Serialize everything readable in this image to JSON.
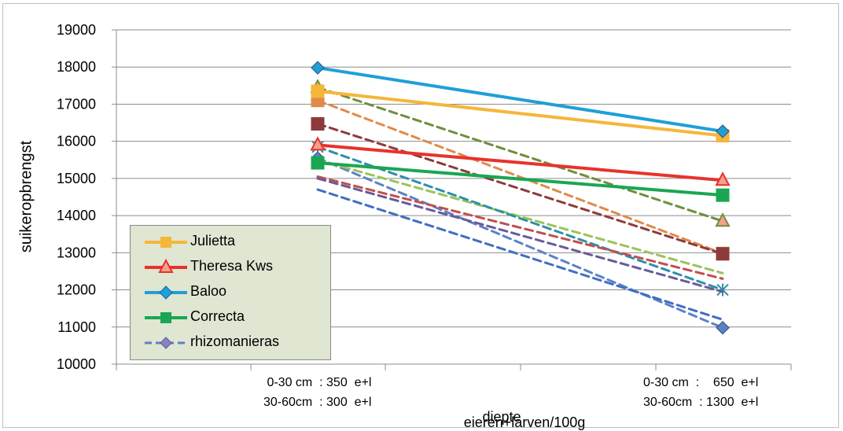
{
  "chart_data": {
    "type": "line",
    "ylabel": "suikeropbrengst",
    "xlabel_line1": "diepte",
    "xlabel_line2": "eieren+larven/100g",
    "ylim": [
      10000,
      19000
    ],
    "yticks": [
      "10000",
      "11000",
      "12000",
      "13000",
      "14000",
      "15000",
      "16000",
      "17000",
      "18000",
      "19000"
    ],
    "categories": [
      {
        "line1": "0-30 cm  : 350  e+l",
        "line2": "30-60cm  : 300  e+l"
      },
      {
        "line1": "0-30 cm  :    650  e+l",
        "line2": "30-60cm  : 1300  e+l"
      }
    ],
    "legend": [
      "Julietta",
      "Theresa Kws",
      "Baloo",
      "Correcta",
      "rhizomanieras"
    ],
    "series": [
      {
        "name": "Julietta",
        "values": [
          17350,
          16150
        ],
        "color": "#f5b63a",
        "dash": false,
        "marker": "square"
      },
      {
        "name": "Theresa Kws",
        "values": [
          15900,
          14950
        ],
        "color": "#e8322c",
        "dash": false,
        "marker": "triangle"
      },
      {
        "name": "Baloo",
        "values": [
          17980,
          16270
        ],
        "color": "#1f9fd8",
        "dash": false,
        "marker": "diamond"
      },
      {
        "name": "Correcta",
        "values": [
          15420,
          14550
        ],
        "color": "#1aa653",
        "dash": false,
        "marker": "square"
      },
      {
        "name": "rhizomanieras",
        "values": [
          15550,
          10980
        ],
        "color": "#5b82c6",
        "dash": true,
        "marker": "diamond"
      },
      {
        "values": [
          17450,
          13850
        ],
        "color": "#6e8f3a",
        "dash": true,
        "marker": "triangle"
      },
      {
        "values": [
          17100,
          12980
        ],
        "color": "#e08b4a",
        "dash": true,
        "marker": "square"
      },
      {
        "values": [
          16470,
          12970
        ],
        "color": "#8e3a3a",
        "dash": true,
        "marker": "square"
      },
      {
        "values": [
          15500,
          12450
        ],
        "color": "#9bc35a",
        "dash": true,
        "marker": "none"
      },
      {
        "values": [
          15850,
          12000
        ],
        "color": "#2f8fa8",
        "dash": true,
        "marker": "star"
      },
      {
        "values": [
          15050,
          12300
        ],
        "color": "#c0504d",
        "dash": true,
        "marker": "none"
      },
      {
        "values": [
          15000,
          11950
        ],
        "color": "#6a5a9a",
        "dash": true,
        "marker": "none"
      },
      {
        "values": [
          14700,
          11200
        ],
        "color": "#3f6fc0",
        "dash": true,
        "marker": "none"
      }
    ]
  }
}
